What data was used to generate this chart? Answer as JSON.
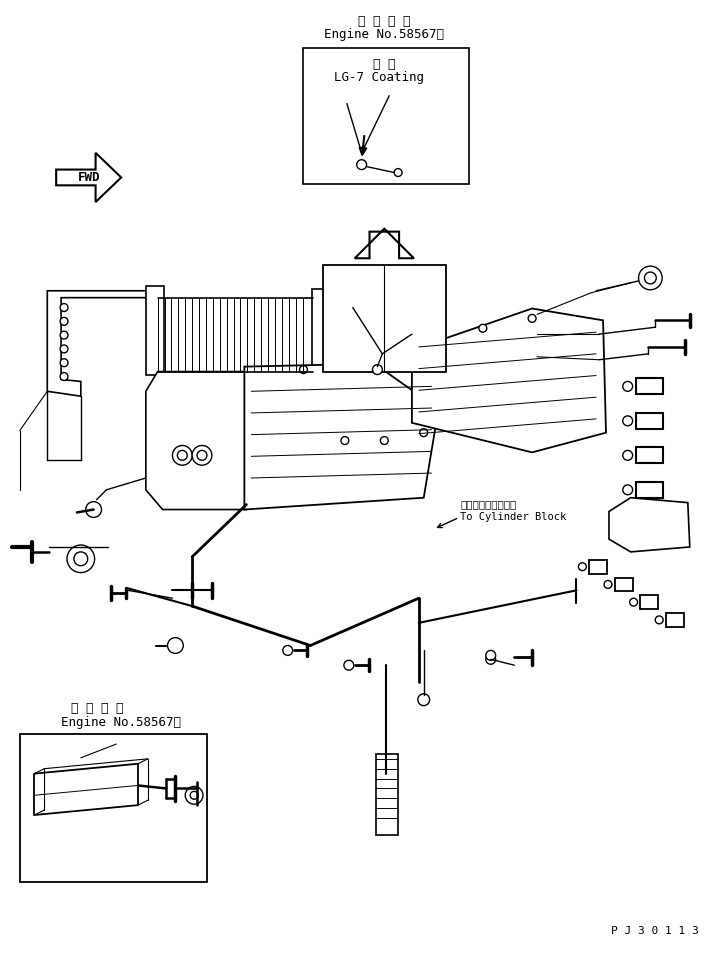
{
  "bg_color": "#ffffff",
  "line_color": "#000000",
  "title_text": "P J 3 0 1 1 3",
  "top_label_jp": "適 用 号 機",
  "top_label_en": "Engine No.58567～",
  "top_box_label_jp": "塗 布",
  "top_box_label_en": "LG-7 Coating",
  "bottom_label_jp": "適 用 号 機",
  "bottom_label_en": "Engine No.58567～",
  "fwd_label": "FWD",
  "cylinder_block_jp": "シリンダブロックへ",
  "cylinder_block_en": "To Cylinder Block",
  "figsize": [
    7.18,
    9.55
  ],
  "dpi": 100
}
